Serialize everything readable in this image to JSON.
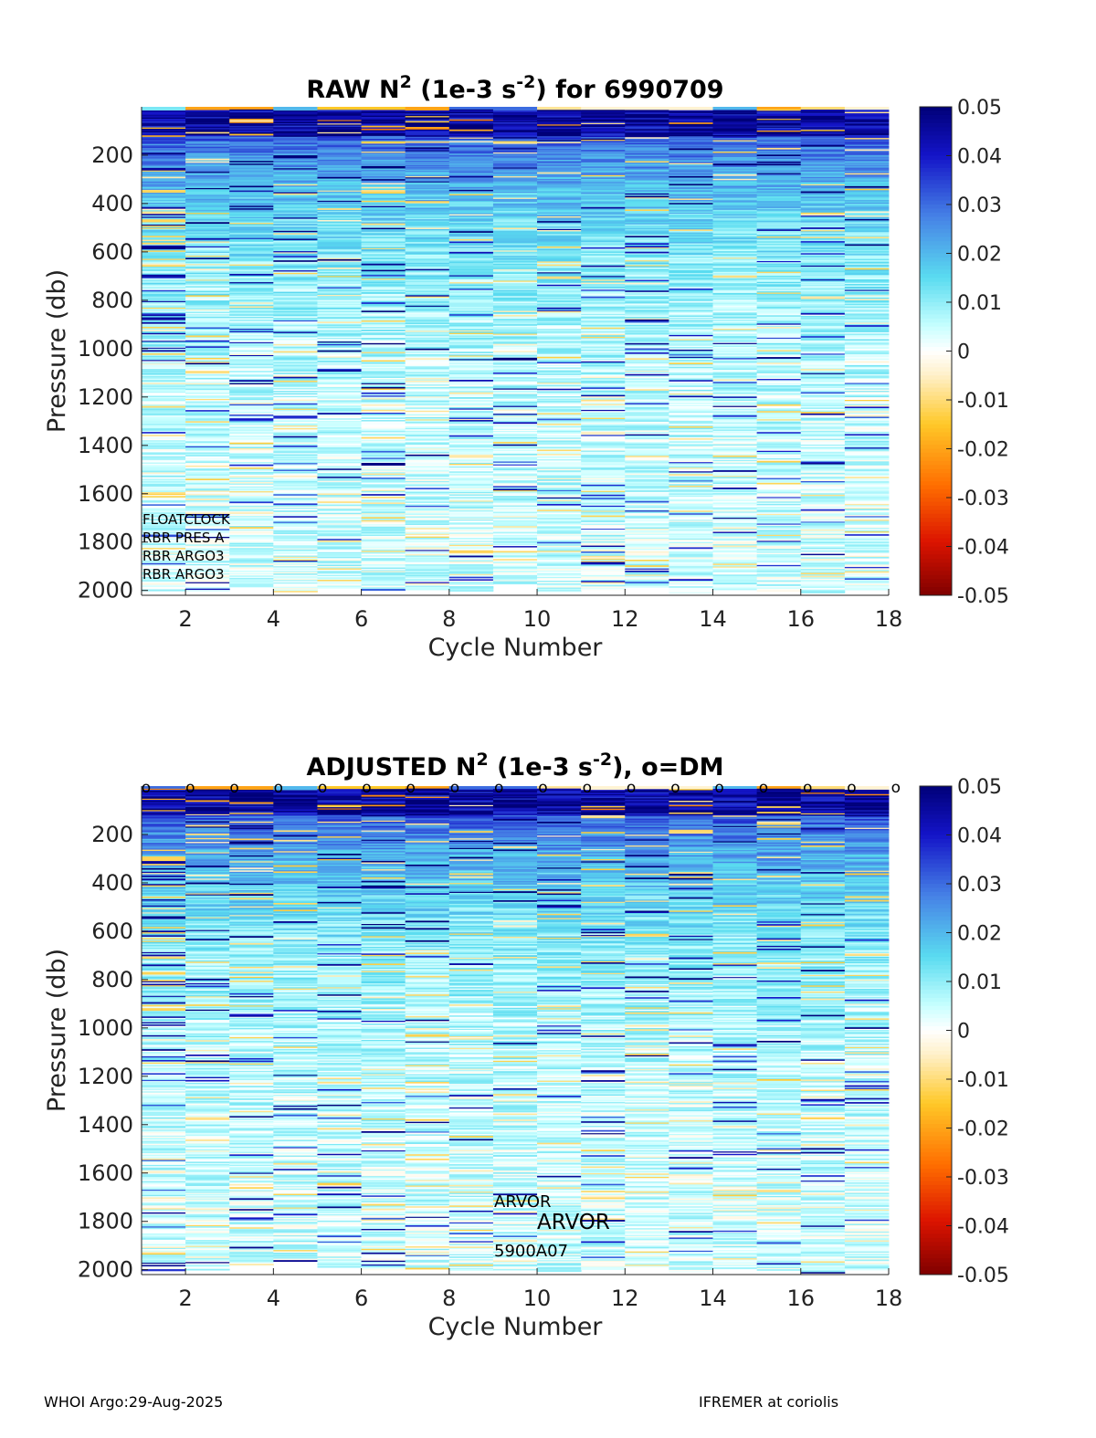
{
  "chart_data": [
    {
      "type": "heatmap",
      "id": "raw",
      "title_parts": {
        "a": "RAW N",
        "sup1": "2",
        "b": " (1e-3 s",
        "sup2": "-2",
        "c": ") for 6990709"
      },
      "xlabel": "Cycle Number",
      "ylabel": "Pressure (db)",
      "xlim": [
        1,
        18
      ],
      "ylim": [
        0,
        2020
      ],
      "y_reversed": true,
      "xticks": [
        2,
        4,
        6,
        8,
        10,
        12,
        14,
        16,
        18
      ],
      "yticks": [
        200,
        400,
        600,
        800,
        1000,
        1200,
        1400,
        1600,
        1800,
        2000
      ],
      "cycles": [
        1,
        2,
        3,
        4,
        5,
        6,
        7,
        8,
        9,
        10,
        11,
        12,
        13,
        14,
        15,
        16,
        17
      ],
      "max_pressure": [
        2000,
        2000,
        1985,
        2005,
        1990,
        2000,
        1995,
        2000,
        1970,
        2005,
        1995,
        1985,
        2010,
        1995,
        2000,
        2010,
        1995
      ],
      "surface_value": [
        0.012,
        -0.02,
        -0.02,
        0.02,
        -0.015,
        -0.015,
        -0.02,
        0.03,
        0.03,
        -0.008,
        -0.004,
        -0.004,
        -0.004,
        0.02,
        -0.02,
        -0.01,
        -0.004
      ],
      "colorbar": {
        "min": -0.05,
        "max": 0.05,
        "ticks": [
          "0.05",
          "0.04",
          "0.03",
          "0.02",
          "0.01",
          "0",
          "-0.01",
          "-0.02",
          "-0.03",
          "-0.04",
          "-0.05"
        ],
        "tick_values": [
          0.05,
          0.04,
          0.03,
          0.02,
          0.01,
          0,
          -0.01,
          -0.02,
          -0.03,
          -0.04,
          -0.05
        ]
      },
      "annotations": [
        "FLOATCLOCK",
        "RBR PRES A",
        "RBR ARGO3",
        "RBR ARGO3"
      ],
      "seed": 7
    },
    {
      "type": "heatmap",
      "id": "adj",
      "title_parts": {
        "a": "ADJUSTED N",
        "sup1": "2",
        "b": " (1e-3 s",
        "sup2": "-2",
        "c": "), o=DM"
      },
      "xlabel": "Cycle Number",
      "ylabel": "Pressure (db)",
      "xlim": [
        1,
        18
      ],
      "ylim": [
        0,
        2020
      ],
      "y_reversed": true,
      "xticks": [
        2,
        4,
        6,
        8,
        10,
        12,
        14,
        16,
        18
      ],
      "yticks": [
        200,
        400,
        600,
        800,
        1000,
        1200,
        1400,
        1600,
        1800,
        2000
      ],
      "cycles": [
        1,
        2,
        3,
        4,
        5,
        6,
        7,
        8,
        9,
        10,
        11,
        12,
        13,
        14,
        15,
        16,
        17
      ],
      "max_pressure": [
        2000,
        2000,
        1985,
        1965,
        1990,
        2000,
        1995,
        2000,
        2000,
        2005,
        1995,
        1985,
        2010,
        1995,
        2000,
        2010,
        1995
      ],
      "surface_value": [
        0.03,
        -0.02,
        -0.02,
        0.02,
        -0.015,
        -0.015,
        -0.02,
        0.03,
        0.03,
        -0.008,
        -0.004,
        -0.004,
        -0.004,
        0.02,
        -0.02,
        -0.01,
        -0.004
      ],
      "dm_marker": "o",
      "dm_cycles": [
        1,
        2,
        3,
        4,
        5,
        6,
        7,
        8,
        9,
        10,
        11,
        12,
        13,
        14,
        15,
        16,
        17,
        18
      ],
      "colorbar": {
        "min": -0.05,
        "max": 0.05,
        "ticks": [
          "0.05",
          "0.04",
          "0.03",
          "0.02",
          "0.01",
          "0",
          "-0.01",
          "-0.02",
          "-0.03",
          "-0.04",
          "-0.05"
        ],
        "tick_values": [
          0.05,
          0.04,
          0.03,
          0.02,
          0.01,
          0,
          -0.01,
          -0.02,
          -0.03,
          -0.04,
          -0.05
        ]
      },
      "annotations": [
        "ARVOR",
        "ARVOR",
        "5900A07"
      ],
      "seed": 13
    }
  ],
  "footer": {
    "left": "WHOI Argo:29-Aug-2025",
    "right": "IFREMER at coriolis"
  }
}
